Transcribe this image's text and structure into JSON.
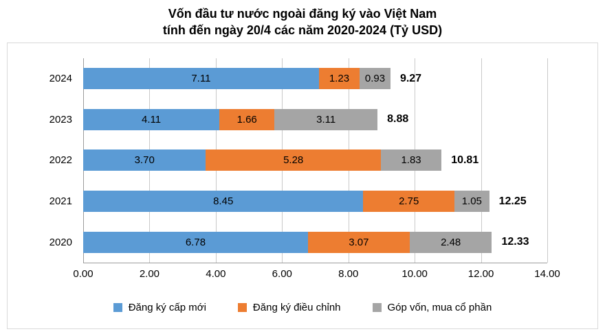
{
  "title": {
    "line1": "Vốn đầu tư nước ngoài đăng ký vào Việt Nam",
    "line2": "tính đến ngày 20/4 các năm 2020-2024 (Tỷ USD)"
  },
  "chart_data": {
    "type": "bar",
    "orientation": "horizontal",
    "stacked": true,
    "title": "Vốn đầu tư nước ngoài đăng ký vào Việt Nam tính đến ngày 20/4 các năm 2020-2024 (Tỷ USD)",
    "categories": [
      "2024",
      "2023",
      "2022",
      "2021",
      "2020"
    ],
    "series": [
      {
        "name": "Đăng ký cấp mới",
        "color": "#5B9BD5",
        "values": [
          7.11,
          4.11,
          3.7,
          8.45,
          6.78
        ]
      },
      {
        "name": "Đăng ký điều chỉnh",
        "color": "#ED7D31",
        "values": [
          1.23,
          1.66,
          5.28,
          2.75,
          3.07
        ]
      },
      {
        "name": "Góp vốn, mua cổ phần",
        "color": "#A5A5A5",
        "values": [
          0.93,
          3.11,
          1.83,
          1.05,
          2.48
        ]
      }
    ],
    "totals": [
      9.27,
      8.88,
      10.81,
      12.25,
      12.33
    ],
    "xlim": [
      0,
      14
    ],
    "xticks": [
      "0.00",
      "2.00",
      "4.00",
      "6.00",
      "8.00",
      "10.00",
      "12.00",
      "14.00"
    ],
    "grid": true,
    "legend_position": "bottom"
  }
}
